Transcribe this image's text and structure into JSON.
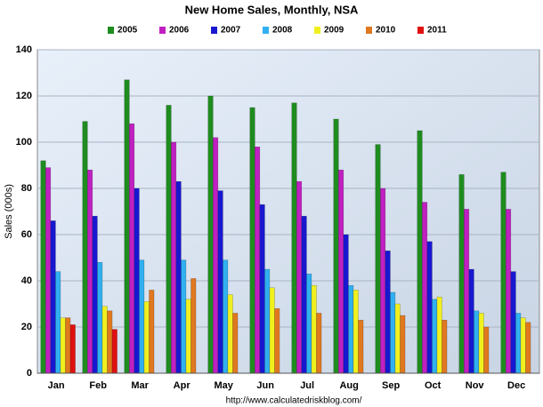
{
  "chart_data": {
    "type": "bar",
    "title": "New Home Sales, Monthly, NSA",
    "y_label": "Sales (000s)",
    "footer": "http://www.calculatedriskblog.com/",
    "categories": [
      "Jan",
      "Feb",
      "Mar",
      "Apr",
      "May",
      "Jun",
      "Jul",
      "Aug",
      "Sep",
      "Oct",
      "Nov",
      "Dec"
    ],
    "series": [
      {
        "name": "2005",
        "color": "#1e8c1e",
        "values": [
          92,
          109,
          127,
          116,
          120,
          115,
          117,
          110,
          99,
          105,
          86,
          87
        ]
      },
      {
        "name": "2006",
        "color": "#c020c0",
        "values": [
          89,
          88,
          108,
          100,
          102,
          98,
          83,
          88,
          80,
          74,
          71,
          71
        ]
      },
      {
        "name": "2007",
        "color": "#1818d0",
        "values": [
          66,
          68,
          80,
          83,
          79,
          73,
          68,
          60,
          53,
          57,
          45,
          44
        ]
      },
      {
        "name": "2008",
        "color": "#30b0f0",
        "values": [
          44,
          48,
          49,
          49,
          49,
          45,
          43,
          38,
          35,
          32,
          27,
          26
        ]
      },
      {
        "name": "2009",
        "color": "#f0f020",
        "values": [
          24,
          29,
          31,
          32,
          34,
          37,
          38,
          36,
          30,
          33,
          26,
          24
        ]
      },
      {
        "name": "2010",
        "color": "#e07820",
        "values": [
          24,
          27,
          36,
          41,
          26,
          28,
          26,
          23,
          25,
          23,
          20,
          22
        ]
      },
      {
        "name": "2011",
        "color": "#e01010",
        "values": [
          21,
          19,
          null,
          null,
          null,
          null,
          null,
          null,
          null,
          null,
          null,
          null
        ]
      }
    ],
    "ylim": [
      0,
      140
    ],
    "yticks": [
      0,
      20,
      40,
      60,
      80,
      100,
      120,
      140
    ],
    "grid": true,
    "legend": "top"
  }
}
